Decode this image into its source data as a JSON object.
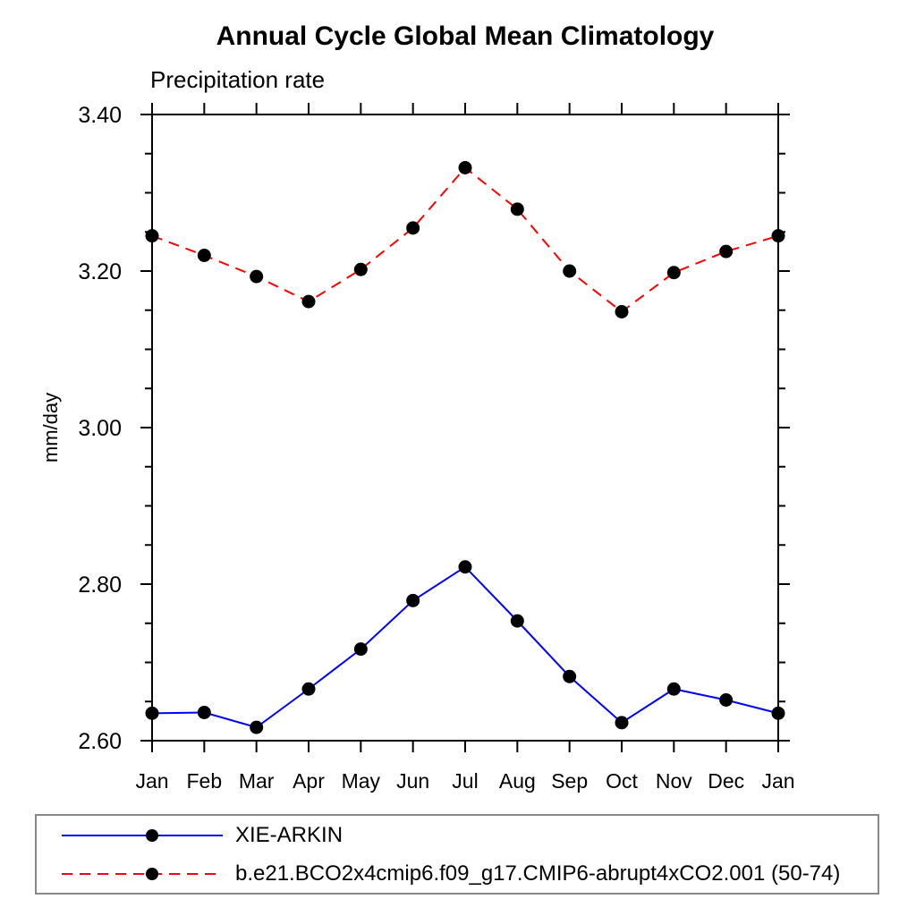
{
  "chart_data": {
    "type": "line",
    "title": "Annual Cycle Global Mean Climatology",
    "subtitle": "Precipitation rate",
    "ylabel": "mm/day",
    "xlabel": "",
    "categories": [
      "Jan",
      "Feb",
      "Mar",
      "Apr",
      "May",
      "Jun",
      "Jul",
      "Aug",
      "Sep",
      "Oct",
      "Nov",
      "Dec",
      "Jan"
    ],
    "ylim": [
      2.6,
      3.4
    ],
    "ytick_major_step": 0.2,
    "ytick_minor_step": 0.05,
    "ytick_labels": [
      "2.60",
      "2.80",
      "3.00",
      "3.20",
      "3.40"
    ],
    "grid": false,
    "legend_position": "bottom",
    "frame_color": "#000000",
    "legend_border_color": "#888888",
    "series": [
      {
        "name": "XIE-ARKIN",
        "color": "#0000ff",
        "line_style": "solid",
        "marker": "filled-circle",
        "marker_color": "#000000",
        "values": [
          2.635,
          2.636,
          2.617,
          2.666,
          2.717,
          2.779,
          2.822,
          2.753,
          2.682,
          2.623,
          2.666,
          2.652,
          2.635
        ]
      },
      {
        "name": "b.e21.BCO2x4cmip6.f09_g17.CMIP6-abrupt4xCO2.001 (50-74)",
        "color": "#ff0000",
        "line_style": "dashed",
        "marker": "filled-circle",
        "marker_color": "#000000",
        "values": [
          3.245,
          3.22,
          3.193,
          3.161,
          3.202,
          3.255,
          3.332,
          3.279,
          3.2,
          3.148,
          3.198,
          3.225,
          3.245
        ]
      }
    ]
  }
}
